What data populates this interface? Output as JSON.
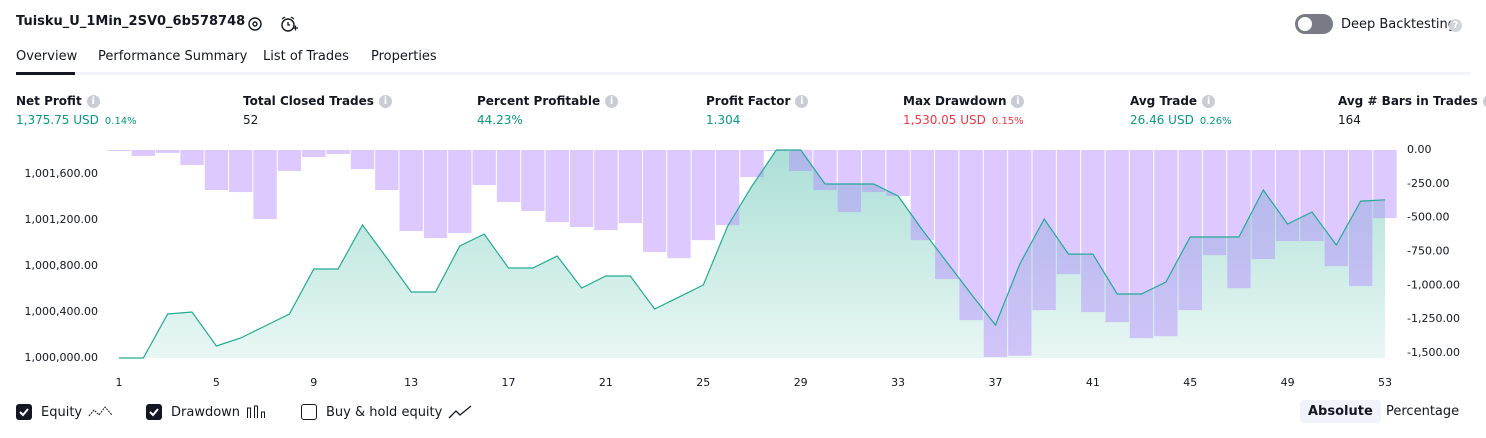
{
  "header": {
    "title": "Tuisku_U_1Min_2SV0_6b578748",
    "deep_backtesting": "Deep Backtesting",
    "deep_backtesting_on": false
  },
  "tabs": [
    "Overview",
    "Performance Summary",
    "List of Trades",
    "Properties"
  ],
  "active_tab": 0,
  "metrics": [
    {
      "label": "Net Profit",
      "value": "1,375.75 USD",
      "percent": "0.14%",
      "color": "#089981"
    },
    {
      "label": "Total Closed Trades",
      "value": "52",
      "color": "#131722"
    },
    {
      "label": "Percent Profitable",
      "value": "44.23%",
      "color": "#089981"
    },
    {
      "label": "Profit Factor",
      "value": "1.304",
      "color": "#089981"
    },
    {
      "label": "Max Drawdown",
      "value": "1,530.05 USD",
      "percent": "0.15%",
      "color": "#f23645"
    },
    {
      "label": "Avg Trade",
      "value": "26.46 USD",
      "percent": "0.26%",
      "color": "#089981"
    },
    {
      "label": "Avg # Bars in Trades",
      "value": "164",
      "color": "#131722"
    }
  ],
  "chart_data": {
    "type": "combo",
    "x": [
      1,
      2,
      3,
      4,
      5,
      6,
      7,
      8,
      9,
      10,
      11,
      12,
      13,
      14,
      15,
      16,
      17,
      18,
      19,
      20,
      21,
      22,
      23,
      24,
      25,
      26,
      27,
      28,
      29,
      30,
      31,
      32,
      33,
      34,
      35,
      36,
      37,
      38,
      39,
      40,
      41,
      42,
      43,
      44,
      45,
      46,
      47,
      48,
      49,
      50,
      51,
      52,
      53
    ],
    "xlim": [
      1,
      53
    ],
    "xticks": [
      1,
      5,
      9,
      13,
      17,
      21,
      25,
      29,
      33,
      37,
      41,
      45,
      49,
      53
    ],
    "series": [
      {
        "name": "Equity",
        "type": "area",
        "color": "#22ab94",
        "checked": true,
        "values": [
          1000000,
          1000000,
          1000383,
          1000400,
          1000104,
          1000174,
          1000278,
          1000383,
          1000774,
          1000774,
          1001157,
          1000870,
          1000574,
          1000574,
          1000974,
          1001078,
          1000783,
          1000783,
          1000887,
          1000609,
          1000713,
          1000713,
          1000426,
          1000530,
          1000635,
          1001148,
          1001496,
          1001809,
          1001809,
          1001513,
          1001513,
          1001513,
          1001409,
          1001113,
          1000835,
          1000557,
          1000287,
          1000817,
          1001209,
          1000904,
          1000904,
          1000557,
          1000557,
          1000661,
          1001052,
          1001052,
          1001052,
          1001461,
          1001165,
          1001270,
          1000983,
          1001365,
          1001375.75
        ]
      },
      {
        "name": "Drawdown",
        "type": "bar",
        "axis": "y2",
        "color": "#b388ff",
        "checked": true,
        "values": [
          -7,
          -44,
          -22,
          -111,
          -296,
          -311,
          -510,
          -155,
          -52,
          -30,
          -141,
          -296,
          -599,
          -651,
          -614,
          -259,
          -385,
          -451,
          -533,
          -569,
          -592,
          -540,
          -754,
          -799,
          -666,
          -555,
          -200,
          0,
          -155,
          -296,
          -459,
          -311,
          -340,
          -666,
          -954,
          -1257,
          -1530.05,
          -1520,
          -1183,
          -917,
          -1198,
          -1272,
          -1390,
          -1376,
          -1183,
          -777,
          -1021,
          -806,
          -673,
          -673,
          -858,
          -1006,
          -503
        ]
      }
    ],
    "ylim": [
      1000000,
      1001809
    ],
    "yticks": [
      {
        "value": 1000000,
        "label": "1,000,000.00"
      },
      {
        "value": 1000400,
        "label": "1,000,400.00"
      },
      {
        "value": 1000800,
        "label": "1,000,800.00"
      },
      {
        "value": 1001200,
        "label": "1,001,200.00"
      },
      {
        "value": 1001600,
        "label": "1,001,600.00"
      }
    ],
    "y2lim": [
      -1537,
      0
    ],
    "y2ticks": [
      {
        "value": 0,
        "label": "0.00"
      },
      {
        "value": -250,
        "label": "-250.00"
      },
      {
        "value": -500,
        "label": "-500.00"
      },
      {
        "value": -750,
        "label": "-750.00"
      },
      {
        "value": -1000,
        "label": "-1,000.00"
      },
      {
        "value": -1250,
        "label": "-1,250.00"
      },
      {
        "value": -1500,
        "label": "-1,500.00"
      }
    ],
    "buy_hold_label": "Buy & hold equity",
    "buy_hold_checked": false
  },
  "modes": [
    "Absolute",
    "Percentage"
  ],
  "active_mode": 0
}
